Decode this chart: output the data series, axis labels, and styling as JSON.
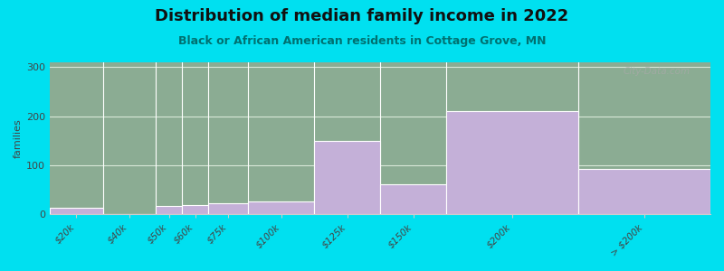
{
  "title": "Distribution of median family income in 2022",
  "subtitle": "Black or African American residents in Cottage Grove, MN",
  "bin_edges": [
    0,
    20,
    40,
    50,
    60,
    75,
    100,
    125,
    150,
    200,
    250
  ],
  "tick_labels": [
    "$20k",
    "$40k",
    "$50k",
    "$60k",
    "$75k",
    "$100k",
    "$125k",
    "$150k",
    "$200k",
    "> $200k"
  ],
  "values": [
    13,
    0,
    18,
    20,
    22,
    27,
    150,
    62,
    210,
    92
  ],
  "bar_color": "#c4b0d8",
  "bar_edge_color": "#ffffff",
  "background_outer": "#00e0f0",
  "background_inner": "#e8f2e4",
  "ylabel": "families",
  "ylim": [
    0,
    310
  ],
  "yticks": [
    0,
    100,
    200,
    300
  ],
  "title_fontsize": 13,
  "subtitle_fontsize": 9,
  "watermark": "City-Data.com",
  "grid_color": "#e0e8e0",
  "title_color": "#111111",
  "subtitle_color": "#007070"
}
